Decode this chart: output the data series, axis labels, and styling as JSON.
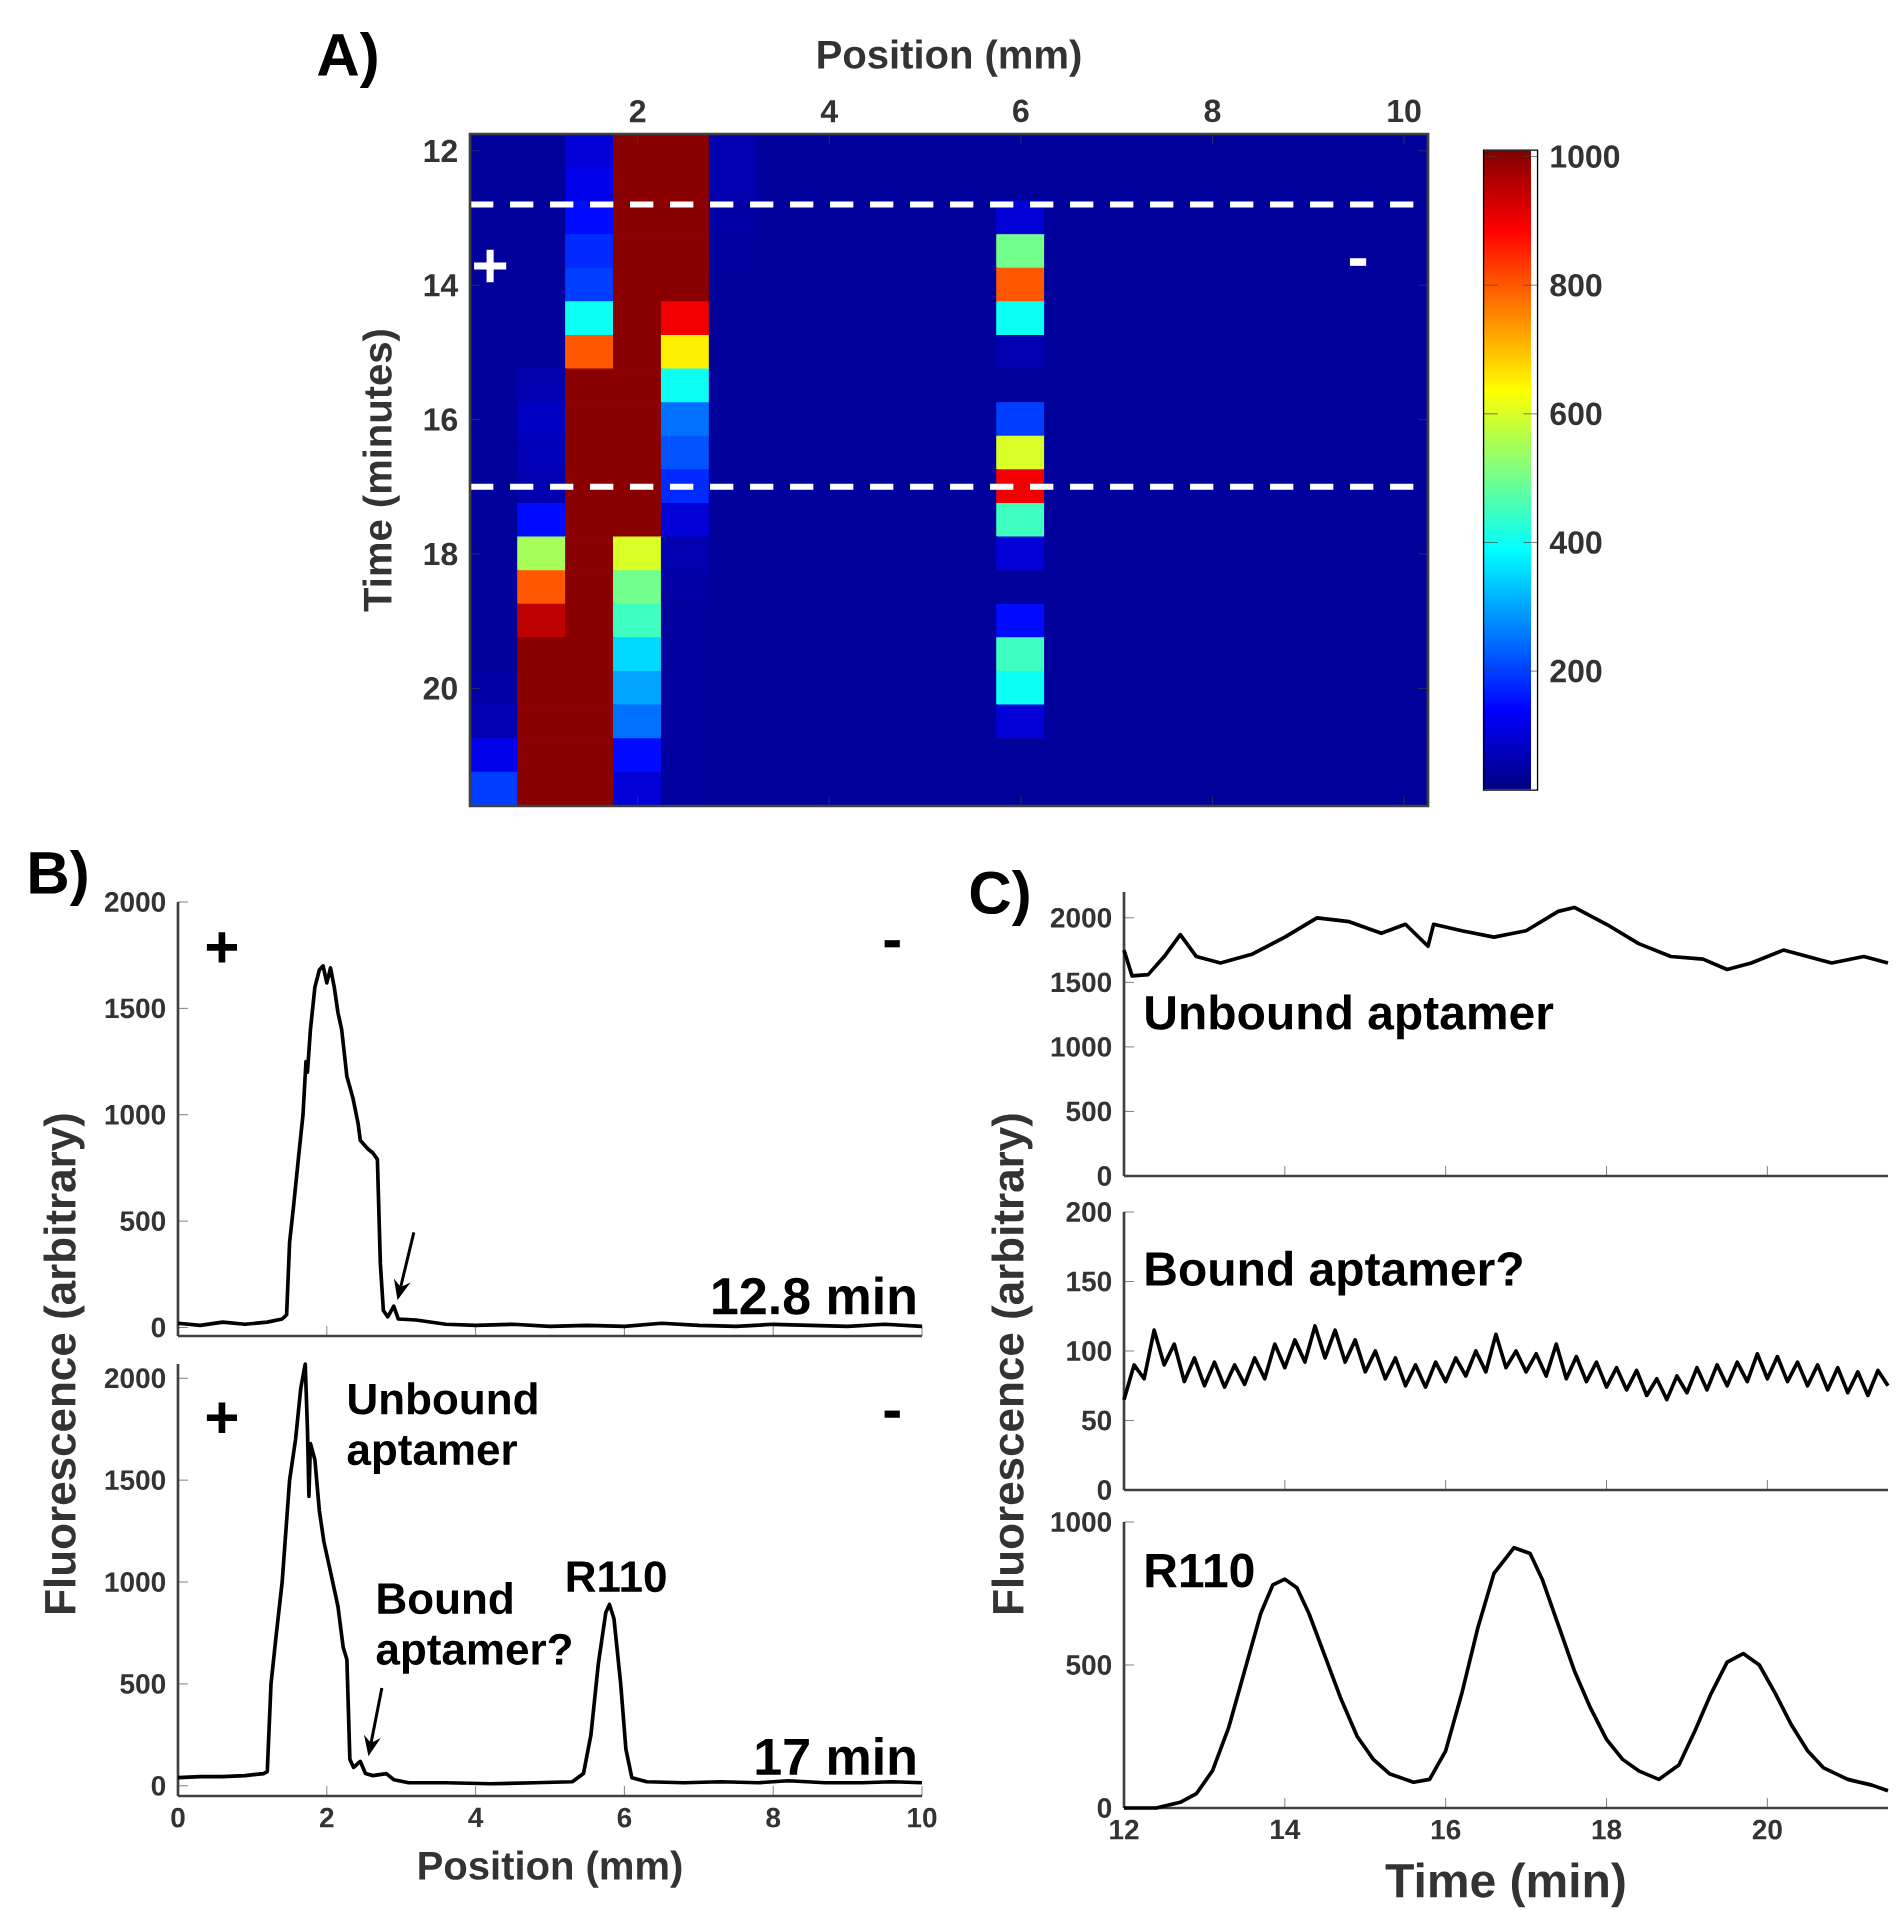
{
  "chart_data": [
    {
      "type": "heatmap",
      "title": "A)",
      "xlabel": "Position (mm)",
      "ylabel": "Time (minutes)",
      "categories": [
        null,
        null,
        null,
        "2",
        null,
        null,
        null,
        "4",
        null,
        null,
        null,
        "6",
        null,
        null,
        null,
        "8",
        null,
        null,
        null,
        "10"
      ],
      "y_categories": [
        "12",
        null,
        null,
        null,
        "14",
        null,
        null,
        null,
        "16",
        null,
        null,
        null,
        "18",
        null,
        null,
        null,
        "20",
        null,
        null,
        null
      ],
      "clim": [
        15,
        1010
      ],
      "cticks": [
        200,
        400,
        600,
        800,
        1000
      ],
      "cells": [
        [
          40,
          40,
          100,
          1000,
          1000,
          60,
          40,
          40,
          40,
          40,
          40,
          40,
          40,
          40,
          40,
          40,
          40,
          40,
          40,
          40
        ],
        [
          40,
          40,
          120,
          1000,
          1000,
          60,
          40,
          40,
          40,
          40,
          40,
          40,
          40,
          40,
          40,
          40,
          40,
          40,
          40,
          40
        ],
        [
          40,
          40,
          150,
          1000,
          1000,
          50,
          40,
          40,
          40,
          40,
          40,
          100,
          40,
          40,
          40,
          40,
          40,
          40,
          40,
          40
        ],
        [
          40,
          40,
          180,
          1000,
          1000,
          45,
          40,
          40,
          40,
          40,
          40,
          500,
          40,
          40,
          40,
          40,
          40,
          40,
          40,
          40
        ],
        [
          40,
          40,
          200,
          1000,
          1000,
          40,
          40,
          40,
          40,
          40,
          40,
          800,
          40,
          40,
          40,
          40,
          40,
          40,
          40,
          40
        ],
        [
          40,
          40,
          400,
          1000,
          900,
          40,
          40,
          40,
          40,
          40,
          40,
          400,
          40,
          40,
          40,
          40,
          40,
          40,
          40,
          40
        ],
        [
          40,
          40,
          800,
          1000,
          650,
          40,
          40,
          40,
          40,
          40,
          40,
          60,
          40,
          40,
          40,
          40,
          40,
          40,
          40,
          40
        ],
        [
          40,
          60,
          1000,
          1000,
          400,
          40,
          40,
          40,
          40,
          40,
          40,
          40,
          40,
          40,
          40,
          40,
          40,
          40,
          40,
          40
        ],
        [
          40,
          80,
          1000,
          1000,
          250,
          40,
          40,
          40,
          40,
          40,
          40,
          200,
          40,
          40,
          40,
          40,
          40,
          40,
          40,
          40
        ],
        [
          40,
          70,
          1000,
          1000,
          220,
          40,
          40,
          40,
          40,
          40,
          40,
          600,
          40,
          40,
          40,
          40,
          40,
          40,
          40,
          40
        ],
        [
          40,
          60,
          1000,
          1000,
          180,
          40,
          40,
          40,
          40,
          40,
          40,
          900,
          40,
          40,
          40,
          40,
          40,
          40,
          40,
          40
        ],
        [
          40,
          150,
          1000,
          1000,
          100,
          40,
          40,
          40,
          40,
          40,
          40,
          450,
          40,
          40,
          40,
          40,
          40,
          40,
          40,
          40
        ],
        [
          40,
          550,
          1000,
          600,
          60,
          40,
          40,
          40,
          40,
          40,
          40,
          100,
          40,
          40,
          40,
          40,
          40,
          40,
          40,
          40
        ],
        [
          40,
          800,
          1000,
          500,
          50,
          40,
          40,
          40,
          40,
          40,
          40,
          40,
          40,
          40,
          40,
          40,
          40,
          40,
          40,
          40
        ],
        [
          40,
          950,
          1000,
          450,
          45,
          40,
          40,
          40,
          40,
          40,
          40,
          150,
          40,
          40,
          40,
          40,
          40,
          40,
          40,
          40
        ],
        [
          40,
          1000,
          1000,
          350,
          45,
          40,
          40,
          40,
          40,
          40,
          40,
          450,
          40,
          40,
          40,
          40,
          40,
          40,
          40,
          40
        ],
        [
          50,
          1000,
          1000,
          300,
          45,
          40,
          40,
          40,
          40,
          40,
          40,
          400,
          40,
          40,
          40,
          40,
          40,
          40,
          40,
          40
        ],
        [
          60,
          1000,
          1000,
          250,
          45,
          40,
          40,
          40,
          40,
          40,
          40,
          100,
          40,
          40,
          40,
          40,
          40,
          40,
          40,
          40
        ],
        [
          120,
          1000,
          1000,
          150,
          45,
          40,
          40,
          40,
          40,
          40,
          40,
          40,
          40,
          40,
          40,
          40,
          40,
          40,
          40,
          40
        ],
        [
          200,
          1000,
          1000,
          100,
          45,
          40,
          40,
          40,
          40,
          40,
          40,
          40,
          40,
          40,
          40,
          40,
          40,
          40,
          40,
          40
        ]
      ],
      "annotations": [
        "+",
        "-"
      ]
    },
    {
      "type": "line",
      "title": "B)",
      "ylabel": "Fluorescence (arbitrary)",
      "xlim": [
        0,
        10
      ],
      "xticks": [
        0,
        2,
        4,
        6,
        8,
        10
      ],
      "ylim": [
        -40,
        2000
      ],
      "yticks": [
        0,
        500,
        1000,
        1500,
        2000
      ],
      "tick_labels": "y",
      "x": [
        0,
        0.3,
        0.6,
        0.9,
        1.2,
        1.4,
        1.46,
        1.5,
        1.55,
        1.62,
        1.68,
        1.72,
        1.74,
        1.78,
        1.84,
        1.9,
        1.95,
        2.0,
        2.05,
        2.1,
        2.15,
        2.2,
        2.27,
        2.35,
        2.42,
        2.45,
        2.5,
        2.55,
        2.62,
        2.68,
        2.72,
        2.76,
        2.82,
        2.9,
        2.96,
        3.2,
        3.6,
        4.0,
        4.5,
        5.0,
        5.5,
        6.0,
        6.5,
        7.0,
        7.5,
        8.0,
        8.5,
        9.0,
        9.5,
        10.0
      ],
      "series": [
        {
          "color": "#000000",
          "values": [
            20,
            10,
            25,
            15,
            25,
            40,
            60,
            400,
            560,
            800,
            1000,
            1250,
            1200,
            1400,
            1600,
            1680,
            1700,
            1620,
            1690,
            1600,
            1480,
            1400,
            1180,
            1080,
            960,
            880,
            860,
            840,
            820,
            790,
            300,
            80,
            50,
            100,
            40,
            35,
            15,
            10,
            15,
            5,
            10,
            5,
            20,
            10,
            5,
            15,
            10,
            5,
            15,
            5
          ]
        }
      ],
      "annotations": [
        "+",
        "-",
        "12.8 min"
      ]
    },
    {
      "type": "line",
      "xlabel": "Position (mm)",
      "xlim": [
        0,
        10
      ],
      "xticks": [
        0,
        2,
        4,
        6,
        8,
        10
      ],
      "ylim": [
        -50,
        2070
      ],
      "yticks": [
        0,
        500,
        1000,
        1500,
        2000
      ],
      "x": [
        0,
        0.3,
        0.6,
        0.9,
        1.15,
        1.2,
        1.25,
        1.32,
        1.4,
        1.5,
        1.58,
        1.65,
        1.71,
        1.74,
        1.76,
        1.78,
        1.84,
        1.9,
        1.96,
        2.05,
        2.15,
        2.22,
        2.27,
        2.31,
        2.36,
        2.45,
        2.52,
        2.62,
        2.8,
        2.9,
        3.1,
        3.6,
        4.2,
        4.8,
        5.3,
        5.45,
        5.55,
        5.65,
        5.75,
        5.8,
        5.86,
        5.95,
        6.02,
        6.1,
        6.3,
        6.8,
        7.3,
        7.8,
        8.2,
        8.7,
        9.2,
        9.6,
        10
      ],
      "series": [
        {
          "color": "#000000",
          "values": [
            40,
            45,
            45,
            50,
            60,
            70,
            500,
            740,
            1000,
            1500,
            1700,
            1950,
            2070,
            1750,
            1420,
            1680,
            1600,
            1350,
            1200,
            1050,
            880,
            680,
            620,
            130,
            90,
            120,
            60,
            50,
            60,
            30,
            15,
            15,
            10,
            15,
            20,
            60,
            250,
            600,
            850,
            890,
            820,
            500,
            180,
            40,
            20,
            15,
            20,
            15,
            25,
            15,
            15,
            20,
            15
          ]
        }
      ],
      "annotations": [
        "+",
        "-",
        {
          "text": "Unbound aptamer",
          "x": 1.71,
          "y": 2070
        },
        {
          "text": "Bound aptamer?",
          "x": 2.55,
          "y": 145
        },
        {
          "text": "R110",
          "x": 5.8,
          "y": 890
        },
        "17 min"
      ]
    },
    {
      "type": "line",
      "title": "C)",
      "ylabel": "Fluorescence (arbitrary)",
      "xlim": [
        12,
        21.5
      ],
      "xticks": [
        12,
        14,
        16,
        18,
        20
      ],
      "ylim": [
        0,
        2200
      ],
      "yticks": [
        0,
        500,
        1000,
        1500,
        2000
      ],
      "tick_labels": "y",
      "x": [
        12.0,
        12.1,
        12.3,
        12.5,
        12.7,
        12.9,
        13.2,
        13.6,
        14.0,
        14.4,
        14.8,
        15.2,
        15.5,
        15.78,
        15.85,
        16.2,
        16.6,
        17.0,
        17.4,
        17.6,
        18.0,
        18.4,
        18.8,
        19.2,
        19.5,
        19.8,
        20.2,
        20.5,
        20.8,
        21.2,
        21.5
      ],
      "series": [
        {
          "color": "#000000",
          "values": [
            1750,
            1550,
            1560,
            1700,
            1870,
            1700,
            1650,
            1720,
            1850,
            2000,
            1970,
            1880,
            1950,
            1780,
            1950,
            1900,
            1850,
            1900,
            2050,
            2080,
            1950,
            1800,
            1700,
            1680,
            1600,
            1650,
            1750,
            1700,
            1650,
            1700,
            1650
          ]
        }
      ],
      "annotations": [
        "Unbound aptamer"
      ]
    },
    {
      "type": "line",
      "xlim": [
        12,
        21.5
      ],
      "xticks": [
        12,
        14,
        16,
        18,
        20
      ],
      "ylim": [
        0,
        200
      ],
      "yticks": [
        0,
        50,
        100,
        150,
        200
      ],
      "tick_labels": "y",
      "x": [
        12,
        12.125,
        12.25,
        12.375,
        12.5,
        12.625,
        12.75,
        12.875,
        13,
        13.125,
        13.25,
        13.375,
        13.5,
        13.625,
        13.75,
        13.875,
        14,
        14.125,
        14.25,
        14.375,
        14.5,
        14.625,
        14.75,
        14.875,
        15,
        15.125,
        15.25,
        15.375,
        15.5,
        15.625,
        15.75,
        15.875,
        16,
        16.125,
        16.25,
        16.375,
        16.5,
        16.625,
        16.75,
        16.875,
        17,
        17.125,
        17.25,
        17.375,
        17.5,
        17.625,
        17.75,
        17.875,
        18,
        18.125,
        18.25,
        18.375,
        18.5,
        18.625,
        18.75,
        18.875,
        19,
        19.125,
        19.25,
        19.375,
        19.5,
        19.625,
        19.75,
        19.875,
        20,
        20.125,
        20.25,
        20.375,
        20.5,
        20.625,
        20.75,
        20.875,
        21,
        21.125,
        21.25,
        21.375,
        21.5
      ],
      "series": [
        {
          "color": "#000000",
          "values": [
            65,
            90,
            80,
            115,
            90,
            105,
            78,
            95,
            75,
            92,
            74,
            90,
            76,
            95,
            80,
            105,
            88,
            108,
            92,
            118,
            95,
            115,
            92,
            108,
            85,
            100,
            80,
            95,
            75,
            90,
            74,
            92,
            78,
            95,
            82,
            100,
            85,
            112,
            88,
            100,
            85,
            98,
            82,
            105,
            80,
            96,
            78,
            92,
            74,
            88,
            72,
            86,
            68,
            80,
            65,
            82,
            70,
            88,
            72,
            90,
            75,
            92,
            78,
            98,
            80,
            96,
            78,
            92,
            75,
            90,
            72,
            88,
            70,
            85,
            68,
            86,
            75
          ]
        }
      ],
      "annotations": [
        "Bound aptamer?"
      ]
    },
    {
      "type": "line",
      "xlabel": "Time (min)",
      "xlim": [
        12,
        21.5
      ],
      "xticks": [
        12,
        14,
        16,
        18,
        20
      ],
      "ylim": [
        0,
        1000
      ],
      "yticks": [
        0,
        500,
        1000
      ],
      "x": [
        12.0,
        12.4,
        12.7,
        12.9,
        13.1,
        13.3,
        13.5,
        13.7,
        13.85,
        14.0,
        14.15,
        14.3,
        14.5,
        14.7,
        14.9,
        15.1,
        15.3,
        15.6,
        15.8,
        16.0,
        16.2,
        16.4,
        16.6,
        16.85,
        17.05,
        17.2,
        17.4,
        17.6,
        17.8,
        18.0,
        18.2,
        18.4,
        18.65,
        18.9,
        19.1,
        19.3,
        19.5,
        19.7,
        19.9,
        20.1,
        20.3,
        20.5,
        20.7,
        21.0,
        21.3,
        21.5
      ],
      "series": [
        {
          "color": "#000000",
          "values": [
            0,
            0,
            20,
            50,
            130,
            280,
            480,
            680,
            780,
            800,
            770,
            680,
            530,
            380,
            250,
            170,
            120,
            90,
            100,
            200,
            400,
            630,
            820,
            910,
            890,
            800,
            640,
            480,
            350,
            240,
            170,
            130,
            100,
            150,
            270,
            400,
            510,
            540,
            500,
            400,
            290,
            200,
            140,
            100,
            80,
            60
          ]
        }
      ],
      "annotations": [
        "R110"
      ]
    }
  ]
}
